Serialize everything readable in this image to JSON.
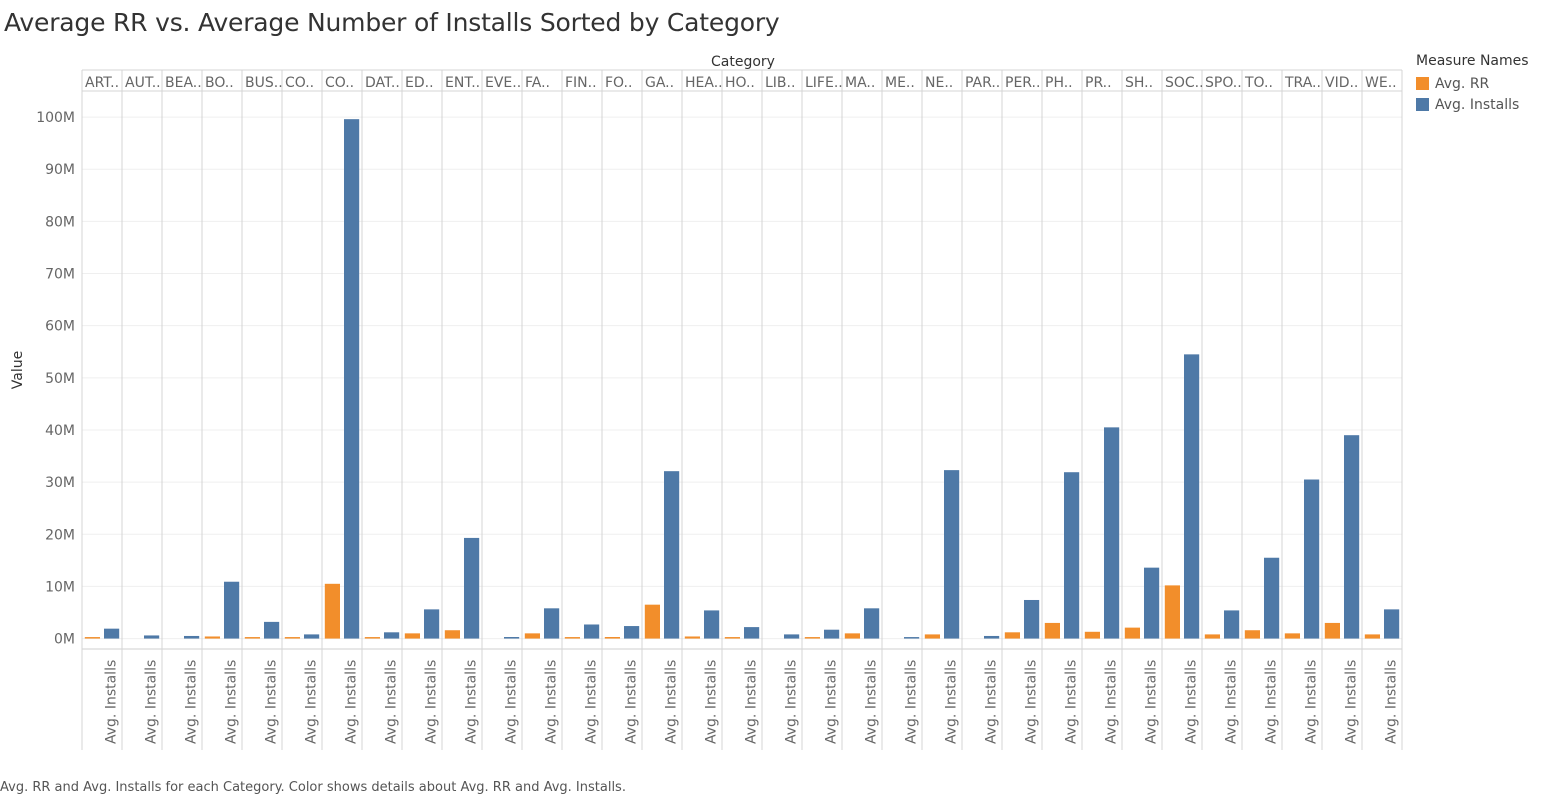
{
  "title": "Average RR vs. Average Number of Installs Sorted by Category",
  "caption": "Avg. RR and Avg. Installs for each Category.  Color shows details about Avg. RR and Avg. Installs.",
  "legend": {
    "title": "Measure Names",
    "items": [
      {
        "label": "Avg. RR",
        "color": "#f28e2b"
      },
      {
        "label": "Avg. Installs",
        "color": "#4e79a7"
      }
    ]
  },
  "chart_data": {
    "type": "bar",
    "title": "Average RR vs. Average Number of Installs Sorted by Category",
    "xlabel": "Category",
    "ylabel": "Value",
    "ylim": [
      -2000000,
      105000000
    ],
    "yticks": [
      0,
      10000000,
      20000000,
      30000000,
      40000000,
      50000000,
      60000000,
      70000000,
      80000000,
      90000000,
      100000000
    ],
    "ytick_labels": [
      "0M",
      "10M",
      "20M",
      "30M",
      "40M",
      "50M",
      "60M",
      "70M",
      "80M",
      "90M",
      "100M"
    ],
    "grid": true,
    "legend_position": "right",
    "categories": [
      "ART..",
      "AUT..",
      "BEA..",
      "BO..",
      "BUS..",
      "CO..",
      "CO..",
      "DAT..",
      "ED..",
      "ENT..",
      "EVE..",
      "FA..",
      "FIN..",
      "FO..",
      "GA..",
      "HEA..",
      "HO..",
      "LIB..",
      "LIFE..",
      "MA..",
      "ME..",
      "NE..",
      "PAR..",
      "PER..",
      "PH..",
      "PR..",
      "SH..",
      "SOC..",
      "SPO..",
      "TO..",
      "TRA..",
      "VID..",
      "WE.."
    ],
    "bottom_tick_label": "Avg. Installs",
    "series": [
      {
        "name": "Avg. RR",
        "color": "#f28e2b",
        "values": [
          100000,
          0,
          0,
          400000,
          150000,
          100000,
          10500000,
          100000,
          1000000,
          1600000,
          0,
          1000000,
          150000,
          300000,
          6500000,
          400000,
          150000,
          0,
          100000,
          1000000,
          0,
          800000,
          0,
          1200000,
          3000000,
          1300000,
          2100000,
          10200000,
          800000,
          1600000,
          1000000,
          3000000,
          800000
        ]
      },
      {
        "name": "Avg. Installs",
        "color": "#4e79a7",
        "values": [
          1900000,
          600000,
          500000,
          10900000,
          3200000,
          800000,
          99600000,
          1200000,
          5600000,
          19300000,
          300000,
          5800000,
          2700000,
          2400000,
          32100000,
          5400000,
          2200000,
          800000,
          1700000,
          5800000,
          200000,
          32300000,
          500000,
          7400000,
          31900000,
          40500000,
          13600000,
          54500000,
          5400000,
          15500000,
          30500000,
          39000000,
          5600000
        ]
      }
    ]
  }
}
